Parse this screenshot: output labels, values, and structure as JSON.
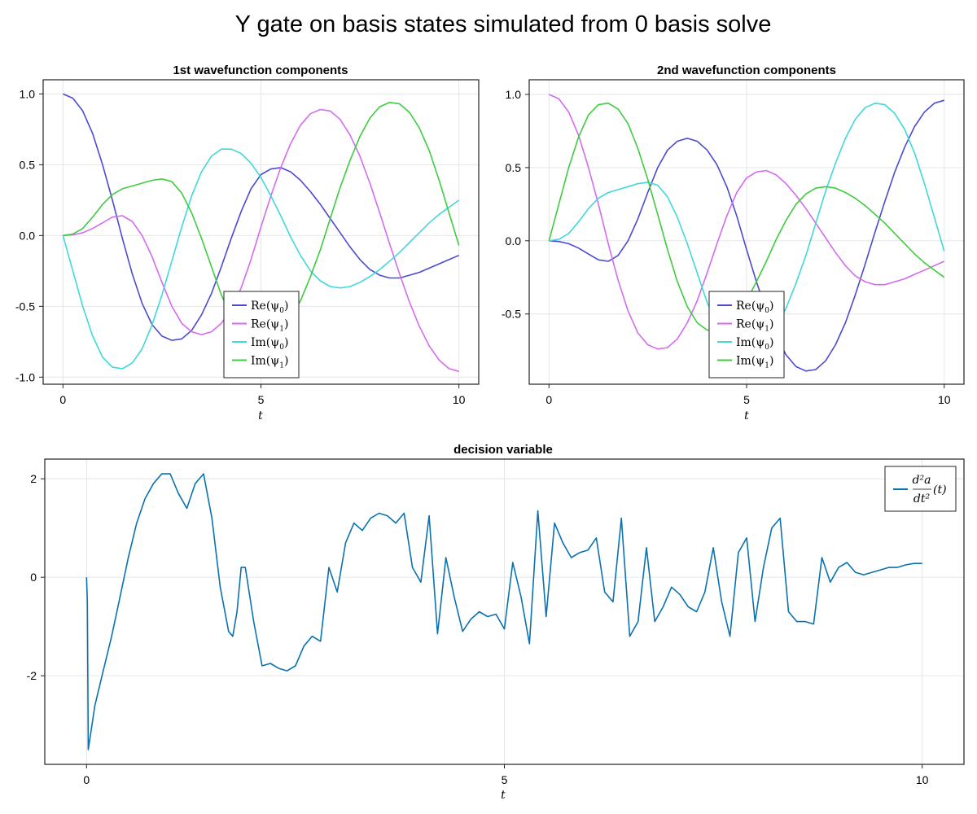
{
  "figure": {
    "title": "Y gate on basis states simulated from 0 basis solve"
  },
  "chart_data": [
    {
      "type": "line",
      "title": "1st wavefunction components",
      "xlabel": "t",
      "ylabel": "",
      "xlim": [
        -0.5,
        10.5
      ],
      "ylim": [
        -1.05,
        1.1
      ],
      "xticks": [
        0,
        5,
        10
      ],
      "xtick_labels": [
        "0",
        "5",
        "10"
      ],
      "yticks": [
        -1.0,
        -0.5,
        0.0,
        0.5,
        1.0
      ],
      "ytick_labels": [
        "-1.0",
        "-0.5",
        "0.0",
        "0.5",
        "1.0"
      ],
      "grid": true,
      "legend_position": "bottom-center",
      "x": [
        0,
        0.25,
        0.5,
        0.75,
        1,
        1.25,
        1.5,
        1.75,
        2,
        2.25,
        2.5,
        2.75,
        3,
        3.25,
        3.5,
        3.75,
        4,
        4.25,
        4.5,
        4.75,
        5,
        5.25,
        5.5,
        5.75,
        6,
        6.25,
        6.5,
        6.75,
        7,
        7.25,
        7.5,
        7.75,
        8,
        8.25,
        8.5,
        8.75,
        9,
        9.25,
        9.5,
        9.75,
        10
      ],
      "series": [
        {
          "name": "Re(ψ0)",
          "color": "#4b4bd1",
          "values": [
            1.0,
            0.97,
            0.88,
            0.72,
            0.5,
            0.25,
            -0.02,
            -0.27,
            -0.48,
            -0.63,
            -0.71,
            -0.74,
            -0.73,
            -0.67,
            -0.56,
            -0.41,
            -0.22,
            -0.02,
            0.17,
            0.33,
            0.43,
            0.47,
            0.48,
            0.45,
            0.39,
            0.31,
            0.22,
            0.12,
            0.02,
            -0.08,
            -0.17,
            -0.24,
            -0.28,
            -0.3,
            -0.3,
            -0.28,
            -0.26,
            -0.23,
            -0.2,
            -0.17,
            -0.14
          ]
        },
        {
          "name": "Re(ψ1)",
          "color": "#d46bf0",
          "values": [
            0.0,
            0.005,
            0.02,
            0.05,
            0.09,
            0.13,
            0.14,
            0.1,
            0.0,
            -0.15,
            -0.33,
            -0.5,
            -0.62,
            -0.68,
            -0.7,
            -0.68,
            -0.62,
            -0.52,
            -0.37,
            -0.17,
            0.06,
            0.28,
            0.48,
            0.65,
            0.78,
            0.86,
            0.89,
            0.88,
            0.82,
            0.71,
            0.56,
            0.37,
            0.16,
            -0.06,
            -0.27,
            -0.47,
            -0.64,
            -0.78,
            -0.88,
            -0.94,
            -0.96
          ]
        },
        {
          "name": "Im(ψ0)",
          "color": "#40d8d8",
          "values": [
            0.0,
            -0.25,
            -0.5,
            -0.71,
            -0.86,
            -0.93,
            -0.94,
            -0.9,
            -0.8,
            -0.63,
            -0.42,
            -0.18,
            0.06,
            0.28,
            0.45,
            0.56,
            0.61,
            0.61,
            0.58,
            0.51,
            0.41,
            0.28,
            0.14,
            -0.01,
            -0.14,
            -0.25,
            -0.32,
            -0.36,
            -0.37,
            -0.36,
            -0.33,
            -0.29,
            -0.24,
            -0.18,
            -0.12,
            -0.05,
            0.02,
            0.09,
            0.15,
            0.2,
            0.25
          ]
        },
        {
          "name": "Im(ψ1)",
          "color": "#3fcc3f",
          "values": [
            0.0,
            0.01,
            0.05,
            0.13,
            0.22,
            0.29,
            0.33,
            0.35,
            0.37,
            0.39,
            0.4,
            0.38,
            0.3,
            0.16,
            -0.02,
            -0.22,
            -0.42,
            -0.57,
            -0.66,
            -0.68,
            -0.68,
            -0.67,
            -0.64,
            -0.58,
            -0.46,
            -0.29,
            -0.1,
            0.12,
            0.34,
            0.53,
            0.7,
            0.83,
            0.91,
            0.94,
            0.93,
            0.87,
            0.76,
            0.6,
            0.39,
            0.16,
            -0.07
          ]
        }
      ]
    },
    {
      "type": "line",
      "title": "2nd wavefunction components",
      "xlabel": "t",
      "ylabel": "",
      "xlim": [
        -0.5,
        10.5
      ],
      "ylim": [
        -0.98,
        1.1
      ],
      "xticks": [
        0,
        5,
        10
      ],
      "xtick_labels": [
        "0",
        "5",
        "10"
      ],
      "yticks": [
        -0.5,
        0.0,
        0.5,
        1.0
      ],
      "ytick_labels": [
        "-0.5",
        "0.0",
        "0.5",
        "1.0"
      ],
      "grid": true,
      "legend_position": "bottom-center",
      "x": [
        0,
        0.25,
        0.5,
        0.75,
        1,
        1.25,
        1.5,
        1.75,
        2,
        2.25,
        2.5,
        2.75,
        3,
        3.25,
        3.5,
        3.75,
        4,
        4.25,
        4.5,
        4.75,
        5,
        5.25,
        5.5,
        5.75,
        6,
        6.25,
        6.5,
        6.75,
        7,
        7.25,
        7.5,
        7.75,
        8,
        8.25,
        8.5,
        8.75,
        9,
        9.25,
        9.5,
        9.75,
        10
      ],
      "series": [
        {
          "name": "Re(ψ0)",
          "color": "#4b4bd1",
          "values": [
            0.0,
            -0.005,
            -0.02,
            -0.05,
            -0.09,
            -0.13,
            -0.14,
            -0.1,
            0.0,
            0.15,
            0.33,
            0.5,
            0.62,
            0.68,
            0.7,
            0.68,
            0.62,
            0.52,
            0.37,
            0.17,
            -0.06,
            -0.28,
            -0.48,
            -0.65,
            -0.78,
            -0.86,
            -0.89,
            -0.88,
            -0.82,
            -0.71,
            -0.56,
            -0.37,
            -0.16,
            0.06,
            0.27,
            0.47,
            0.64,
            0.78,
            0.88,
            0.94,
            0.96
          ]
        },
        {
          "name": "Re(ψ1)",
          "color": "#d46bf0",
          "values": [
            1.0,
            0.97,
            0.88,
            0.72,
            0.5,
            0.25,
            -0.02,
            -0.27,
            -0.48,
            -0.63,
            -0.71,
            -0.74,
            -0.73,
            -0.67,
            -0.56,
            -0.41,
            -0.22,
            -0.02,
            0.17,
            0.33,
            0.43,
            0.47,
            0.48,
            0.45,
            0.39,
            0.31,
            0.22,
            0.12,
            0.02,
            -0.08,
            -0.17,
            -0.24,
            -0.28,
            -0.3,
            -0.3,
            -0.28,
            -0.26,
            -0.23,
            -0.2,
            -0.17,
            -0.14
          ]
        },
        {
          "name": "Im(ψ0)",
          "color": "#40d8d8",
          "values": [
            0.0,
            0.01,
            0.05,
            0.13,
            0.22,
            0.29,
            0.33,
            0.35,
            0.37,
            0.39,
            0.4,
            0.38,
            0.3,
            0.16,
            -0.02,
            -0.22,
            -0.42,
            -0.57,
            -0.66,
            -0.68,
            -0.68,
            -0.67,
            -0.64,
            -0.58,
            -0.46,
            -0.29,
            -0.1,
            0.12,
            0.34,
            0.53,
            0.7,
            0.83,
            0.91,
            0.94,
            0.93,
            0.87,
            0.76,
            0.6,
            0.39,
            0.16,
            -0.07
          ]
        },
        {
          "name": "Im(ψ1)",
          "color": "#3fcc3f",
          "values": [
            0.0,
            0.25,
            0.5,
            0.71,
            0.86,
            0.93,
            0.94,
            0.9,
            0.8,
            0.63,
            0.42,
            0.18,
            -0.06,
            -0.28,
            -0.45,
            -0.56,
            -0.61,
            -0.61,
            -0.58,
            -0.51,
            -0.41,
            -0.28,
            -0.14,
            0.01,
            0.14,
            0.25,
            0.32,
            0.36,
            0.37,
            0.36,
            0.33,
            0.29,
            0.24,
            0.18,
            0.12,
            0.05,
            -0.02,
            -0.09,
            -0.15,
            -0.2,
            -0.25
          ]
        }
      ]
    },
    {
      "type": "line",
      "title": "decision variable",
      "xlabel": "t",
      "ylabel": "",
      "xlim": [
        -0.5,
        10.5
      ],
      "ylim": [
        -3.8,
        2.4
      ],
      "xticks": [
        0,
        5,
        10
      ],
      "xtick_labels": [
        "0",
        "5",
        "10"
      ],
      "yticks": [
        -2,
        0,
        2
      ],
      "ytick_labels": [
        "-2",
        "0",
        "2"
      ],
      "grid": true,
      "legend_position": "top-right",
      "x": [
        0,
        0.01,
        0.02,
        0.1,
        0.2,
        0.3,
        0.4,
        0.5,
        0.6,
        0.7,
        0.8,
        0.9,
        1.0,
        1.1,
        1.2,
        1.3,
        1.4,
        1.5,
        1.6,
        1.7,
        1.75,
        1.8,
        1.85,
        1.9,
        2.0,
        2.1,
        2.2,
        2.3,
        2.4,
        2.5,
        2.6,
        2.7,
        2.8,
        2.9,
        3.0,
        3.1,
        3.2,
        3.3,
        3.4,
        3.5,
        3.6,
        3.7,
        3.8,
        3.9,
        4.0,
        4.1,
        4.2,
        4.3,
        4.4,
        4.5,
        4.6,
        4.7,
        4.8,
        4.9,
        5.0,
        5.1,
        5.2,
        5.3,
        5.4,
        5.5,
        5.6,
        5.7,
        5.8,
        5.9,
        6.0,
        6.1,
        6.2,
        6.3,
        6.4,
        6.5,
        6.6,
        6.7,
        6.8,
        6.9,
        7.0,
        7.1,
        7.2,
        7.3,
        7.4,
        7.5,
        7.6,
        7.7,
        7.8,
        7.9,
        8.0,
        8.1,
        8.2,
        8.3,
        8.4,
        8.5,
        8.6,
        8.7,
        8.8,
        8.9,
        9.0,
        9.1,
        9.2,
        9.3,
        9.4,
        9.5,
        9.6,
        9.7,
        9.8,
        9.9,
        10.0
      ],
      "series": [
        {
          "name": "d²a/dt²(t)",
          "color": "#0a72b0",
          "values": [
            0.0,
            -0.5,
            -3.5,
            -2.6,
            -1.9,
            -1.2,
            -0.4,
            0.4,
            1.1,
            1.6,
            1.9,
            2.1,
            2.1,
            1.7,
            1.4,
            1.9,
            2.1,
            1.2,
            -0.2,
            -1.1,
            -1.2,
            -0.7,
            0.2,
            0.2,
            -0.9,
            -1.8,
            -1.75,
            -1.85,
            -1.9,
            -1.8,
            -1.4,
            -1.2,
            -1.3,
            0.2,
            -0.3,
            0.7,
            1.1,
            0.95,
            1.2,
            1.3,
            1.25,
            1.1,
            1.3,
            0.2,
            -0.1,
            1.25,
            -1.15,
            0.4,
            -0.4,
            -1.1,
            -0.85,
            -0.7,
            -0.8,
            -0.75,
            -1.05,
            0.3,
            -0.4,
            -1.35,
            1.35,
            -0.8,
            1.1,
            0.7,
            0.4,
            0.5,
            0.55,
            0.8,
            -0.3,
            -0.5,
            1.2,
            -1.2,
            -0.9,
            0.6,
            -0.9,
            -0.6,
            -0.2,
            -0.35,
            -0.6,
            -0.7,
            -0.3,
            0.6,
            -0.5,
            -1.2,
            0.5,
            0.8,
            -0.9,
            0.2,
            1.0,
            1.2,
            -0.7,
            -0.9,
            -0.9,
            -0.95,
            0.4,
            -0.1,
            0.2,
            0.3,
            0.1,
            0.05,
            0.1,
            0.15,
            0.2,
            0.2,
            0.25,
            0.28,
            0.28
          ]
        }
      ],
      "legend_label": "d²a/dt²(t)"
    }
  ]
}
